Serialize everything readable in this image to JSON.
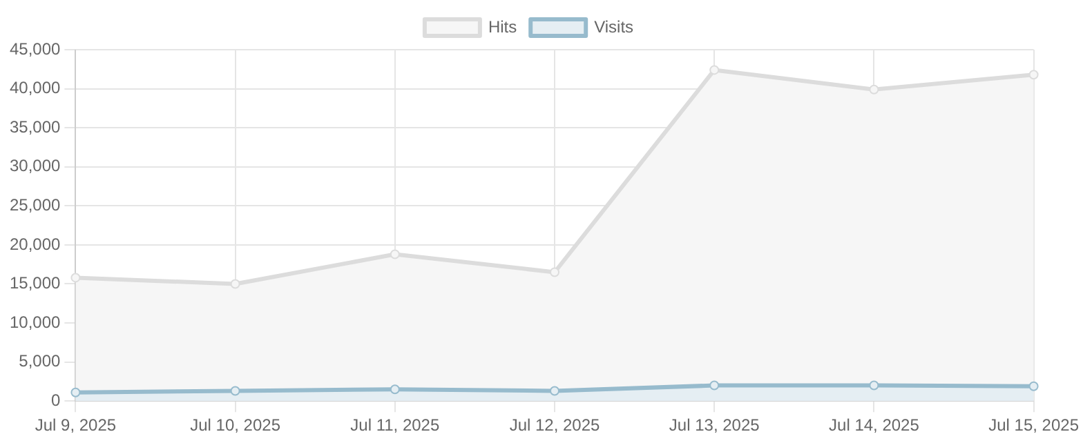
{
  "chart_data": {
    "type": "area",
    "categories": [
      "Jul 9, 2025",
      "Jul 10, 2025",
      "Jul 11, 2025",
      "Jul 12, 2025",
      "Jul 13, 2025",
      "Jul 14, 2025",
      "Jul 15, 2025"
    ],
    "series": [
      {
        "name": "Hits",
        "color": "#dcdcdc",
        "values": [
          15800,
          15000,
          18800,
          16500,
          42400,
          39900,
          41800
        ]
      },
      {
        "name": "Visits",
        "color": "#97bbcd",
        "values": [
          1100,
          1300,
          1500,
          1300,
          2000,
          2000,
          1900
        ]
      }
    ],
    "ylim": [
      0,
      45000
    ],
    "yticks": [
      0,
      {
        "value": 5000,
        "label": "5,000"
      },
      {
        "value": 10000,
        "label": "10,000"
      },
      {
        "value": 15000,
        "label": "15,000"
      },
      {
        "value": 20000,
        "label": "20,000"
      },
      {
        "value": 25000,
        "label": "25,000"
      },
      {
        "value": 30000,
        "label": "30,000"
      },
      {
        "value": 35000,
        "label": "35,000"
      },
      {
        "value": 40000,
        "label": "40,000"
      },
      {
        "value": 45000,
        "label": "45,000"
      }
    ],
    "grid": true,
    "legend": "top",
    "marker": "circle",
    "line_style": "solid"
  }
}
